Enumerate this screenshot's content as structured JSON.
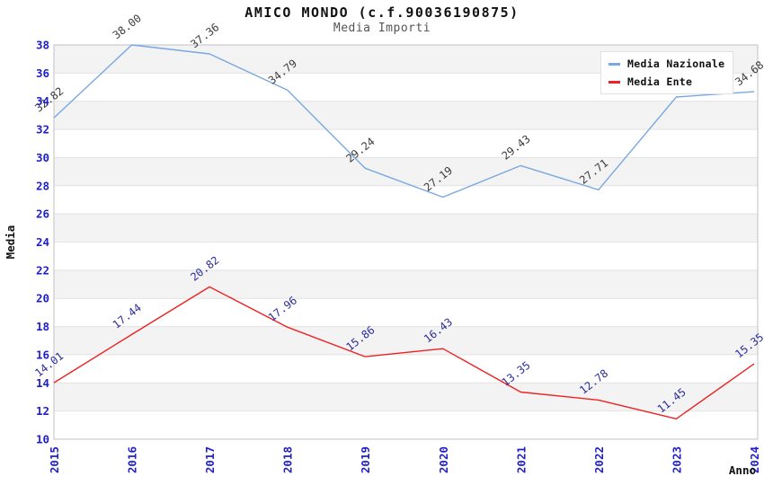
{
  "header": {
    "title": "AMICO MONDO (c.f.90036190875)",
    "subtitle": "Media Importi"
  },
  "chart_data": {
    "type": "line",
    "title": "AMICO MONDO (c.f.90036190875)",
    "subtitle": "Media Importi",
    "xlabel": "Anno",
    "ylabel": "Media",
    "categories": [
      "2015",
      "2016",
      "2017",
      "2018",
      "2019",
      "2020",
      "2021",
      "2022",
      "2023",
      "2024"
    ],
    "ylim": [
      10,
      38
    ],
    "ytick_step": 2,
    "yticks": [
      10,
      12,
      14,
      16,
      18,
      20,
      22,
      24,
      26,
      28,
      30,
      32,
      34,
      36,
      38
    ],
    "grid": "alternating-horizontal-bands",
    "legend_position": "top-right-inside",
    "series": [
      {
        "name": "Media Nazionale",
        "color": "#79a8e0",
        "label_color": "#3c3c3c",
        "values": [
          32.82,
          38.0,
          37.36,
          34.79,
          29.24,
          27.19,
          29.43,
          27.71,
          34.3,
          34.68
        ],
        "labels": [
          "32.82",
          "38.00",
          "37.36",
          "34.79",
          "29.24",
          "27.19",
          "29.43",
          "27.71",
          null,
          "34.68"
        ],
        "note": "2023 value label hidden behind legend box"
      },
      {
        "name": "Media Ente",
        "color": "#ee2222",
        "label_color": "#2d2d99",
        "values": [
          14.01,
          17.44,
          20.82,
          17.96,
          15.86,
          16.43,
          13.35,
          12.78,
          11.45,
          15.35
        ],
        "labels": [
          "14.01",
          "17.44",
          "20.82",
          "17.96",
          "15.86",
          "16.43",
          "13.35",
          "12.78",
          "11.45",
          "15.35"
        ]
      }
    ],
    "colors": {
      "tick_label": "#1f1fc8",
      "band": "#f3f3f3",
      "gridline": "#e3e3e3",
      "border": "#c2c2c2",
      "axis_title": "#111111",
      "title": "#111111",
      "subtitle": "#555555"
    }
  }
}
